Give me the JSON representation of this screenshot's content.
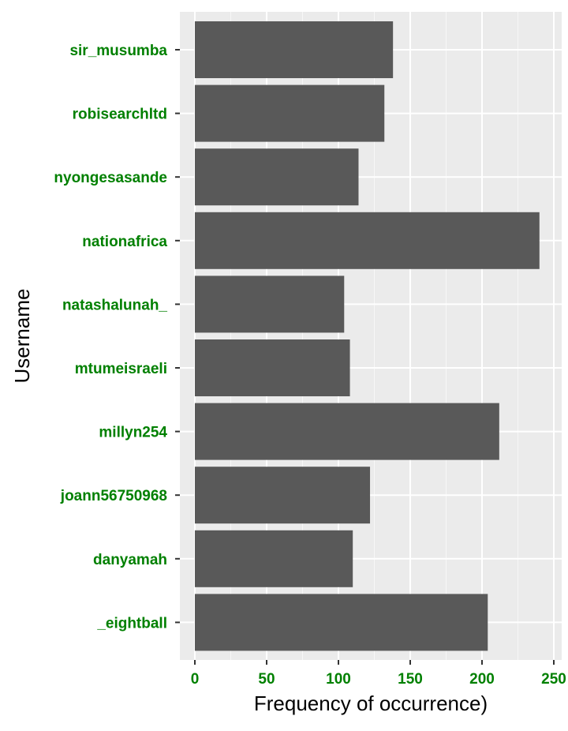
{
  "chart_data": {
    "type": "bar",
    "orientation": "horizontal",
    "title": "",
    "xlabel": "Frequency of occurrence)",
    "ylabel": "Username",
    "categories": [
      "sir_musumba",
      "robisearchltd",
      "nyongesasande",
      "nationafrica",
      "natashalunah_",
      "mtumeisraeli",
      "millyn254",
      "joann56750968",
      "danyamah",
      "_eightball"
    ],
    "values": [
      138,
      132,
      114,
      240,
      104,
      108,
      212,
      122,
      110,
      204
    ],
    "xlim": [
      0,
      250
    ],
    "xticks": [
      0,
      50,
      100,
      150,
      200,
      250
    ],
    "grid": true,
    "legend": "none"
  },
  "colors": {
    "bar": "#595959",
    "panel": "#ebebeb",
    "grid_major": "#ffffff",
    "tick_label": "#008000",
    "axis_title": "#000000"
  }
}
